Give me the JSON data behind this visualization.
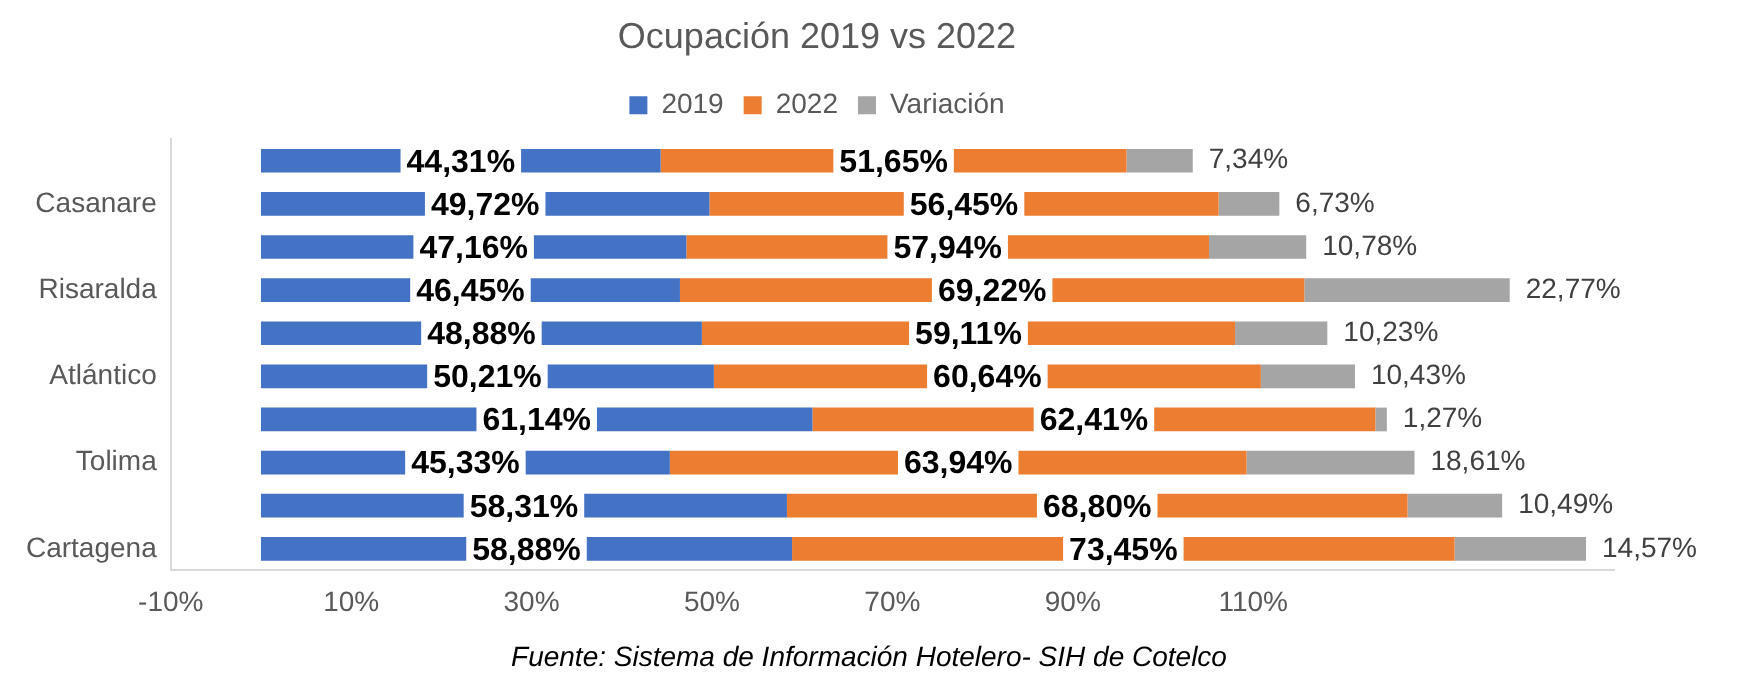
{
  "chart_data": {
    "type": "bar",
    "orientation": "horizontal",
    "stacked": true,
    "title": "Ocupación 2019 vs 2022",
    "categories": [
      null,
      "Casanare",
      null,
      "Risaralda",
      null,
      "Atlántico",
      null,
      "Tolima",
      null,
      "Cartagena"
    ],
    "series": [
      {
        "name": "2019",
        "color": "#4472c4",
        "values": [
          44.31,
          49.72,
          47.16,
          46.45,
          48.88,
          50.21,
          61.14,
          45.33,
          58.31,
          58.88
        ],
        "value_labels": [
          "44,31%",
          "49,72%",
          "47,16%",
          "46,45%",
          "48,88%",
          "50,21%",
          "61,14%",
          "45,33%",
          "58,31%",
          "58,88%"
        ]
      },
      {
        "name": "2022",
        "color": "#ed7d31",
        "values": [
          51.65,
          56.45,
          57.94,
          69.22,
          59.11,
          60.64,
          62.41,
          63.94,
          68.8,
          73.45
        ],
        "value_labels": [
          "51,65%",
          "56,45%",
          "57,94%",
          "69,22%",
          "59,11%",
          "60,64%",
          "62,41%",
          "63,94%",
          "68,80%",
          "73,45%"
        ]
      },
      {
        "name": "Variación",
        "color": "#a5a5a5",
        "values": [
          7.34,
          6.73,
          10.78,
          22.77,
          10.23,
          10.43,
          1.27,
          18.61,
          10.49,
          14.57
        ],
        "value_labels": [
          "7,34%",
          "6,73%",
          "10,78%",
          "22,77%",
          "10,23%",
          "10,43%",
          "1,27%",
          "18,61%",
          "10,49%",
          "14,57%"
        ]
      }
    ],
    "xlim": [
      -10,
      150
    ],
    "xticks": [
      {
        "value": -10,
        "label": "-10%"
      },
      {
        "value": 10,
        "label": "10%"
      },
      {
        "value": 30,
        "label": "30%"
      },
      {
        "value": 50,
        "label": "50%"
      },
      {
        "value": 70,
        "label": "70%"
      },
      {
        "value": 90,
        "label": "90%"
      },
      {
        "value": 110,
        "label": "110%"
      }
    ],
    "legend": "top",
    "grid": false,
    "annotations": [
      "Fuente: Sistema de Información Hotelero- SIH de Cotelco"
    ]
  }
}
